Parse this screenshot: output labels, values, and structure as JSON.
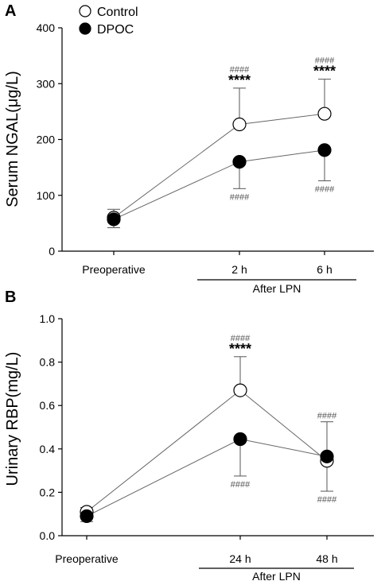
{
  "legend": {
    "control": "Control",
    "dpoc": "DPOC"
  },
  "chart_data": [
    {
      "type": "line",
      "panel": "A",
      "ylabel": "Serum NGAL(μg/L)",
      "xlabel": "",
      "ylim": [
        0,
        400
      ],
      "yticks": [
        0,
        100,
        200,
        300,
        400
      ],
      "categories": [
        "Preoperative",
        "2 h",
        "6 h"
      ],
      "group_label": "After LPN",
      "series": [
        {
          "name": "Control",
          "marker": "open-circle",
          "values": [
            60,
            227,
            246
          ],
          "errors": [
            15,
            65,
            62
          ],
          "error_direction": "up"
        },
        {
          "name": "DPOC",
          "marker": "filled-circle",
          "values": [
            57,
            160,
            181
          ],
          "errors": [
            15,
            48,
            55
          ],
          "error_direction": "down"
        }
      ],
      "annotations": [
        {
          "category": 1,
          "text": "####",
          "position": "above",
          "series": "Control"
        },
        {
          "category": 1,
          "text": "****",
          "position": "above",
          "series": "Control"
        },
        {
          "category": 1,
          "text": "####",
          "position": "below",
          "series": "DPOC"
        },
        {
          "category": 2,
          "text": "####",
          "position": "above",
          "series": "Control"
        },
        {
          "category": 2,
          "text": "****",
          "position": "above",
          "series": "Control"
        },
        {
          "category": 2,
          "text": "####",
          "position": "below",
          "series": "DPOC"
        }
      ]
    },
    {
      "type": "line",
      "panel": "B",
      "ylabel": "Urinary RBP(mg/L)",
      "xlabel": "",
      "ylim": [
        0,
        1.0
      ],
      "yticks": [
        "0.0",
        "0.2",
        "0.4",
        "0.6",
        "0.8",
        "1.0"
      ],
      "categories": [
        "Preoperative",
        "24 h",
        "48 h"
      ],
      "group_label": "After LPN",
      "series": [
        {
          "name": "Control",
          "marker": "open-circle",
          "values": [
            0.11,
            0.67,
            0.345
          ],
          "errors": [
            0.02,
            0.155,
            0.14
          ],
          "error_direction": "split"
        },
        {
          "name": "DPOC",
          "marker": "filled-circle",
          "values": [
            0.09,
            0.445,
            0.365
          ],
          "errors": [
            0.025,
            0.17,
            0.16
          ],
          "error_direction": "split"
        }
      ],
      "annotations": [
        {
          "category": 1,
          "text": "####",
          "position": "above",
          "series": "Control"
        },
        {
          "category": 1,
          "text": "****",
          "position": "above",
          "series": "Control"
        },
        {
          "category": 1,
          "text": "####",
          "position": "below",
          "series": "DPOC"
        },
        {
          "category": 2,
          "text": "####",
          "position": "above",
          "series": "DPOC"
        },
        {
          "category": 2,
          "text": "####",
          "position": "below",
          "series": "Control"
        }
      ]
    }
  ]
}
